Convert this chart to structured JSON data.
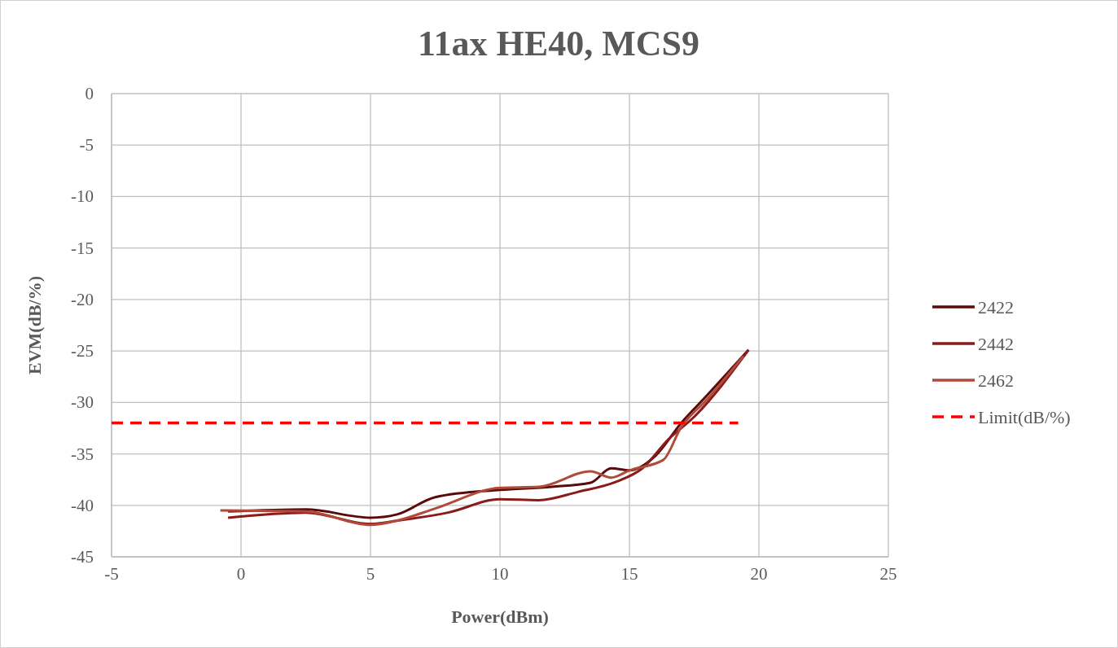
{
  "chart_data": {
    "type": "line",
    "title": "11ax HE40, MCS9",
    "xlabel": "Power(dBm)",
    "ylabel": "EVM(dB/%)",
    "xlim": [
      -5,
      25
    ],
    "xticks": [
      -5,
      0,
      5,
      10,
      15,
      20,
      25
    ],
    "ylim": [
      -45,
      0
    ],
    "yticks": [
      -45,
      -40,
      -35,
      -30,
      -25,
      -20,
      -15,
      -10,
      -5,
      0
    ],
    "grid": true,
    "legend": "right",
    "marker": "none",
    "line_style": "solid",
    "series": [
      {
        "name": "2422",
        "color": "#5a0a0a",
        "x": [
          -0.5,
          2.5,
          5,
          6,
          7.5,
          10,
          12,
          13.5,
          14.3,
          15,
          16,
          17,
          18,
          19.6
        ],
        "values": [
          -40.6,
          -40.4,
          -41.2,
          -40.9,
          -39.2,
          -38.5,
          -38.2,
          -37.8,
          -36.4,
          -36.6,
          -35.2,
          -32,
          -29.3,
          -24.9
        ]
      },
      {
        "name": "2442",
        "color": "#8b1a1a",
        "x": [
          -0.5,
          2.5,
          5,
          6,
          8,
          10,
          11.5,
          13,
          14.5,
          15.5,
          16.5,
          17.5,
          19.6
        ],
        "values": [
          -41.2,
          -40.7,
          -41.8,
          -41.5,
          -40.7,
          -39.4,
          -39.5,
          -38.7,
          -37.7,
          -36.4,
          -33.6,
          -31.4,
          -24.9
        ]
      },
      {
        "name": "2462",
        "color": "#b04a3a",
        "x": [
          -0.8,
          2.5,
          5,
          6,
          7.5,
          10,
          11.5,
          13.5,
          14.3,
          15,
          16.3,
          17,
          18,
          19.4
        ],
        "values": [
          -40.5,
          -40.6,
          -41.9,
          -41.5,
          -40.3,
          -38.3,
          -38.2,
          -36.7,
          -37.3,
          -36.6,
          -35.6,
          -32.4,
          -29.7,
          -25.5
        ]
      },
      {
        "name": "Limit(dB/%)",
        "color": "#ff0000",
        "line_style": "dashed",
        "x": [
          -5,
          19.2
        ],
        "values": [
          -32,
          -32
        ]
      }
    ]
  }
}
